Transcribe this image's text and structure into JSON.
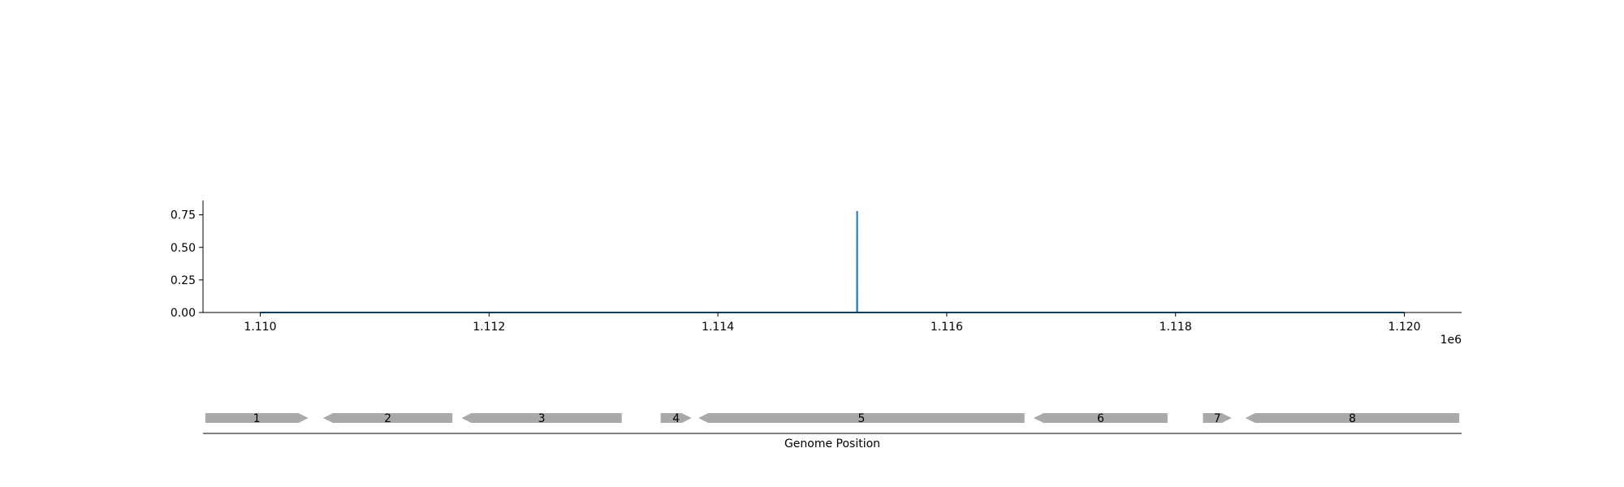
{
  "chart_data": [
    {
      "type": "line",
      "x": [
        1110000,
        1115216,
        1115217,
        1115218,
        1120000
      ],
      "y": [
        0.0,
        0.0,
        0.78,
        0.0,
        0.0
      ],
      "xlim": [
        1109500,
        1120500
      ],
      "ylim": [
        0.0,
        0.86
      ],
      "xticks": [
        1110000,
        1112000,
        1114000,
        1116000,
        1118000,
        1120000
      ],
      "xtick_labels": [
        "1.110",
        "1.112",
        "1.114",
        "1.116",
        "1.118",
        "1.120"
      ],
      "x_offset_label": "1e6",
      "yticks": [
        0.0,
        0.25,
        0.5,
        0.75
      ],
      "ytick_labels": [
        "0.00",
        "0.25",
        "0.50",
        "0.75"
      ],
      "grid": false,
      "line_color": "#1f77b4"
    },
    {
      "type": "gene_track",
      "xlabel": "Genome Position",
      "xlim": [
        1109500,
        1120500
      ],
      "feature_color": "#a9a9a9",
      "genes": [
        {
          "label": "1",
          "start": 1109520,
          "end": 1110420,
          "strand": "+"
        },
        {
          "label": "2",
          "start": 1110550,
          "end": 1111680,
          "strand": "-"
        },
        {
          "label": "3",
          "start": 1111760,
          "end": 1113160,
          "strand": "-"
        },
        {
          "label": "4",
          "start": 1113500,
          "end": 1113770,
          "strand": "+"
        },
        {
          "label": "5",
          "start": 1113830,
          "end": 1116680,
          "strand": "-"
        },
        {
          "label": "6",
          "start": 1116760,
          "end": 1117930,
          "strand": "-"
        },
        {
          "label": "7",
          "start": 1118240,
          "end": 1118490,
          "strand": "+"
        },
        {
          "label": "8",
          "start": 1118610,
          "end": 1120480,
          "strand": "-"
        }
      ]
    }
  ]
}
